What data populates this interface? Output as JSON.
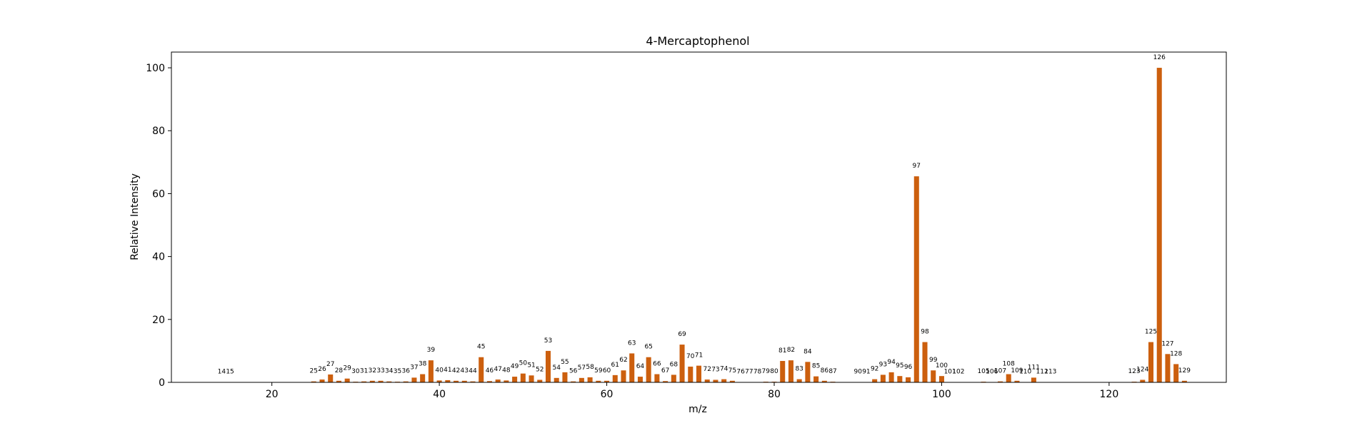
{
  "chart_data": {
    "type": "bar",
    "title": "4-Mercaptophenol",
    "xlabel": "m/z",
    "ylabel": "Relative Intensity",
    "xlim": [
      8,
      134
    ],
    "ylim": [
      0,
      105
    ],
    "xticks": [
      20,
      40,
      60,
      80,
      100,
      120
    ],
    "yticks": [
      0,
      20,
      40,
      60,
      80,
      100
    ],
    "bar_color": "#cc5f0e",
    "grid": false,
    "x": [
      14,
      15,
      25,
      26,
      27,
      28,
      29,
      30,
      31,
      32,
      33,
      34,
      35,
      36,
      37,
      38,
      39,
      40,
      41,
      42,
      43,
      44,
      45,
      46,
      47,
      48,
      49,
      50,
      51,
      52,
      53,
      54,
      55,
      56,
      57,
      58,
      59,
      60,
      61,
      62,
      63,
      64,
      65,
      66,
      67,
      68,
      69,
      70,
      71,
      72,
      73,
      74,
      75,
      76,
      77,
      78,
      79,
      80,
      81,
      82,
      83,
      84,
      85,
      86,
      87,
      90,
      91,
      92,
      93,
      94,
      95,
      96,
      97,
      98,
      99,
      100,
      101,
      102,
      105,
      106,
      107,
      108,
      109,
      110,
      111,
      112,
      113,
      123,
      124,
      125,
      126,
      127,
      128,
      129
    ],
    "values": [
      0.1,
      0.1,
      0.3,
      0.9,
      2.5,
      0.5,
      1.2,
      0.2,
      0.3,
      0.5,
      0.5,
      0.3,
      0.2,
      0.3,
      1.5,
      2.6,
      7.0,
      0.6,
      0.7,
      0.5,
      0.5,
      0.3,
      8.0,
      0.4,
      0.9,
      0.6,
      1.8,
      2.8,
      2.2,
      0.8,
      10.0,
      1.4,
      3.2,
      0.3,
      1.4,
      1.6,
      0.5,
      0.5,
      2.3,
      3.8,
      9.2,
      1.8,
      8.0,
      2.6,
      0.4,
      2.4,
      12.0,
      5.0,
      5.3,
      0.9,
      0.8,
      1.0,
      0.5,
      0.1,
      0.1,
      0.1,
      0.2,
      0.2,
      6.8,
      7.0,
      1.0,
      6.5,
      1.9,
      0.5,
      0.2,
      0.1,
      0.1,
      1.0,
      2.4,
      3.2,
      2.0,
      1.6,
      65.5,
      12.8,
      3.8,
      2.0,
      0.1,
      0.1,
      0.2,
      0.1,
      0.3,
      2.6,
      0.5,
      0.1,
      1.5,
      0.1,
      0.1,
      0.2,
      0.8,
      12.8,
      100,
      9.0,
      5.8,
      0.5
    ],
    "labels": [
      "14",
      "15",
      "25",
      "26",
      "27",
      "28",
      "29",
      "30",
      "31",
      "32",
      "33",
      "34",
      "35",
      "36",
      "37",
      "38",
      "39",
      "40",
      "41",
      "42",
      "43",
      "44",
      "45",
      "46",
      "47",
      "48",
      "49",
      "50",
      "51",
      "52",
      "53",
      "54",
      "55",
      "56",
      "57",
      "58",
      "59",
      "60",
      "61",
      "62",
      "63",
      "64",
      "65",
      "66",
      "67",
      "68",
      "69",
      "70",
      "71",
      "72",
      "73",
      "74",
      "75",
      "76",
      "77",
      "78",
      "79",
      "80",
      "81",
      "82",
      "83",
      "84",
      "85",
      "86",
      "87",
      "90",
      "91",
      "92",
      "93",
      "94",
      "95",
      "96",
      "97",
      "98",
      "99",
      "100",
      "101",
      "102",
      "105",
      "106",
      "107",
      "108",
      "109",
      "110",
      "111",
      "112",
      "113",
      "123",
      "124",
      "125",
      "126",
      "127",
      "128",
      "129"
    ]
  }
}
